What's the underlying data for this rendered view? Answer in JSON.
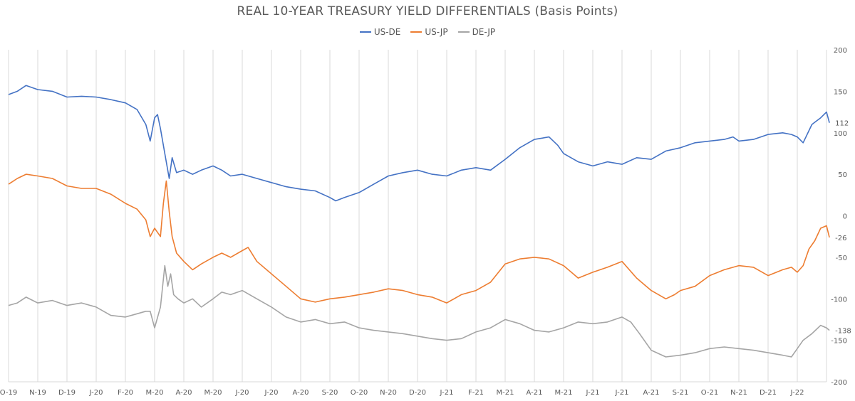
{
  "chart_data": {
    "type": "line",
    "title": "REAL 10-YEAR TREASURY YIELD DIFFERENTIALS (Basis Points)",
    "xlabel": "",
    "ylabel": "",
    "ylim": [
      -200,
      200
    ],
    "y_ticks": [
      200,
      150,
      100,
      50,
      0,
      -50,
      -100,
      -150,
      -200
    ],
    "x_tick_labels": [
      "O-19",
      "N-19",
      "D-19",
      "J-20",
      "F-20",
      "M-20",
      "A-20",
      "M-20",
      "J-20",
      "J-20",
      "A-20",
      "S-20",
      "O-20",
      "N-20",
      "D-20",
      "J-21",
      "F-21",
      "M-21",
      "A-21",
      "M-21",
      "J-21",
      "J-21",
      "A-21",
      "S-21",
      "O-21",
      "N-21",
      "D-21",
      "J-22"
    ],
    "legend_position": "top",
    "grid": "vertical",
    "series": [
      {
        "name": "US-DE",
        "color": "#4472C4",
        "end_label": "112",
        "points": [
          [
            0,
            146
          ],
          [
            0.3,
            150
          ],
          [
            0.6,
            157
          ],
          [
            1,
            152
          ],
          [
            1.5,
            150
          ],
          [
            2,
            143
          ],
          [
            2.5,
            144
          ],
          [
            3,
            143
          ],
          [
            3.5,
            140
          ],
          [
            4,
            136
          ],
          [
            4.4,
            128
          ],
          [
            4.7,
            110
          ],
          [
            4.85,
            90
          ],
          [
            5,
            118
          ],
          [
            5.1,
            122
          ],
          [
            5.2,
            105
          ],
          [
            5.35,
            75
          ],
          [
            5.5,
            45
          ],
          [
            5.6,
            70
          ],
          [
            5.75,
            52
          ],
          [
            6,
            55
          ],
          [
            6.3,
            50
          ],
          [
            6.6,
            55
          ],
          [
            7,
            60
          ],
          [
            7.3,
            55
          ],
          [
            7.6,
            48
          ],
          [
            8,
            50
          ],
          [
            8.5,
            45
          ],
          [
            9,
            40
          ],
          [
            9.5,
            35
          ],
          [
            10,
            32
          ],
          [
            10.5,
            30
          ],
          [
            11,
            22
          ],
          [
            11.2,
            18
          ],
          [
            11.5,
            22
          ],
          [
            12,
            28
          ],
          [
            12.5,
            38
          ],
          [
            13,
            48
          ],
          [
            13.5,
            52
          ],
          [
            14,
            55
          ],
          [
            14.5,
            50
          ],
          [
            15,
            48
          ],
          [
            15.5,
            55
          ],
          [
            16,
            58
          ],
          [
            16.5,
            55
          ],
          [
            17,
            68
          ],
          [
            17.5,
            82
          ],
          [
            18,
            92
          ],
          [
            18.5,
            95
          ],
          [
            18.8,
            85
          ],
          [
            19,
            75
          ],
          [
            19.5,
            65
          ],
          [
            20,
            60
          ],
          [
            20.5,
            65
          ],
          [
            21,
            62
          ],
          [
            21.5,
            70
          ],
          [
            22,
            68
          ],
          [
            22.5,
            78
          ],
          [
            23,
            82
          ],
          [
            23.5,
            88
          ],
          [
            24,
            90
          ],
          [
            24.5,
            92
          ],
          [
            24.8,
            95
          ],
          [
            25,
            90
          ],
          [
            25.5,
            92
          ],
          [
            26,
            98
          ],
          [
            26.5,
            100
          ],
          [
            26.8,
            98
          ],
          [
            27,
            95
          ],
          [
            27.2,
            88
          ],
          [
            27.5,
            110
          ],
          [
            27.8,
            118
          ],
          [
            28,
            125
          ],
          [
            28.1,
            112
          ]
        ]
      },
      {
        "name": "US-JP",
        "color": "#ED7D31",
        "end_label": "-26",
        "points": [
          [
            0,
            38
          ],
          [
            0.3,
            45
          ],
          [
            0.6,
            50
          ],
          [
            1,
            48
          ],
          [
            1.5,
            45
          ],
          [
            2,
            36
          ],
          [
            2.5,
            33
          ],
          [
            3,
            33
          ],
          [
            3.5,
            26
          ],
          [
            4,
            15
          ],
          [
            4.4,
            8
          ],
          [
            4.7,
            -5
          ],
          [
            4.85,
            -25
          ],
          [
            5,
            -15
          ],
          [
            5.2,
            -25
          ],
          [
            5.3,
            15
          ],
          [
            5.4,
            42
          ],
          [
            5.5,
            5
          ],
          [
            5.6,
            -25
          ],
          [
            5.75,
            -45
          ],
          [
            6,
            -55
          ],
          [
            6.3,
            -65
          ],
          [
            6.6,
            -58
          ],
          [
            7,
            -50
          ],
          [
            7.3,
            -45
          ],
          [
            7.6,
            -50
          ],
          [
            8,
            -42
          ],
          [
            8.2,
            -38
          ],
          [
            8.5,
            -55
          ],
          [
            9,
            -70
          ],
          [
            9.5,
            -85
          ],
          [
            10,
            -100
          ],
          [
            10.5,
            -104
          ],
          [
            11,
            -100
          ],
          [
            11.5,
            -98
          ],
          [
            12,
            -95
          ],
          [
            12.5,
            -92
          ],
          [
            13,
            -88
          ],
          [
            13.5,
            -90
          ],
          [
            14,
            -95
          ],
          [
            14.5,
            -98
          ],
          [
            15,
            -105
          ],
          [
            15.5,
            -95
          ],
          [
            16,
            -90
          ],
          [
            16.5,
            -80
          ],
          [
            17,
            -58
          ],
          [
            17.5,
            -52
          ],
          [
            18,
            -50
          ],
          [
            18.5,
            -52
          ],
          [
            19,
            -60
          ],
          [
            19.5,
            -75
          ],
          [
            20,
            -68
          ],
          [
            20.5,
            -62
          ],
          [
            21,
            -55
          ],
          [
            21.5,
            -75
          ],
          [
            22,
            -90
          ],
          [
            22.5,
            -100
          ],
          [
            22.8,
            -95
          ],
          [
            23,
            -90
          ],
          [
            23.5,
            -85
          ],
          [
            24,
            -72
          ],
          [
            24.5,
            -65
          ],
          [
            25,
            -60
          ],
          [
            25.5,
            -62
          ],
          [
            26,
            -72
          ],
          [
            26.5,
            -65
          ],
          [
            26.8,
            -62
          ],
          [
            27,
            -68
          ],
          [
            27.2,
            -60
          ],
          [
            27.4,
            -40
          ],
          [
            27.6,
            -30
          ],
          [
            27.8,
            -15
          ],
          [
            28,
            -12
          ],
          [
            28.1,
            -26
          ]
        ]
      },
      {
        "name": "DE-JP",
        "color": "#A5A5A5",
        "end_label": "-138",
        "points": [
          [
            0,
            -108
          ],
          [
            0.3,
            -105
          ],
          [
            0.6,
            -98
          ],
          [
            1,
            -105
          ],
          [
            1.5,
            -102
          ],
          [
            2,
            -108
          ],
          [
            2.5,
            -105
          ],
          [
            3,
            -110
          ],
          [
            3.5,
            -120
          ],
          [
            4,
            -122
          ],
          [
            4.4,
            -118
          ],
          [
            4.7,
            -115
          ],
          [
            4.85,
            -115
          ],
          [
            5,
            -135
          ],
          [
            5.2,
            -110
          ],
          [
            5.35,
            -60
          ],
          [
            5.45,
            -85
          ],
          [
            5.55,
            -70
          ],
          [
            5.65,
            -95
          ],
          [
            5.8,
            -100
          ],
          [
            6,
            -105
          ],
          [
            6.3,
            -100
          ],
          [
            6.6,
            -110
          ],
          [
            7,
            -100
          ],
          [
            7.3,
            -92
          ],
          [
            7.6,
            -95
          ],
          [
            8,
            -90
          ],
          [
            8.5,
            -100
          ],
          [
            9,
            -110
          ],
          [
            9.5,
            -122
          ],
          [
            10,
            -128
          ],
          [
            10.5,
            -125
          ],
          [
            11,
            -130
          ],
          [
            11.5,
            -128
          ],
          [
            12,
            -135
          ],
          [
            12.5,
            -138
          ],
          [
            13,
            -140
          ],
          [
            13.5,
            -142
          ],
          [
            14,
            -145
          ],
          [
            14.5,
            -148
          ],
          [
            15,
            -150
          ],
          [
            15.5,
            -148
          ],
          [
            16,
            -140
          ],
          [
            16.5,
            -135
          ],
          [
            17,
            -125
          ],
          [
            17.5,
            -130
          ],
          [
            18,
            -138
          ],
          [
            18.5,
            -140
          ],
          [
            19,
            -135
          ],
          [
            19.5,
            -128
          ],
          [
            20,
            -130
          ],
          [
            20.5,
            -128
          ],
          [
            21,
            -122
          ],
          [
            21.3,
            -128
          ],
          [
            21.6,
            -142
          ],
          [
            22,
            -162
          ],
          [
            22.5,
            -170
          ],
          [
            23,
            -168
          ],
          [
            23.5,
            -165
          ],
          [
            24,
            -160
          ],
          [
            24.5,
            -158
          ],
          [
            25,
            -160
          ],
          [
            25.5,
            -162
          ],
          [
            26,
            -165
          ],
          [
            26.5,
            -168
          ],
          [
            26.8,
            -170
          ],
          [
            27,
            -160
          ],
          [
            27.2,
            -150
          ],
          [
            27.5,
            -142
          ],
          [
            27.8,
            -132
          ],
          [
            28,
            -135
          ],
          [
            28.1,
            -138
          ]
        ]
      }
    ]
  }
}
